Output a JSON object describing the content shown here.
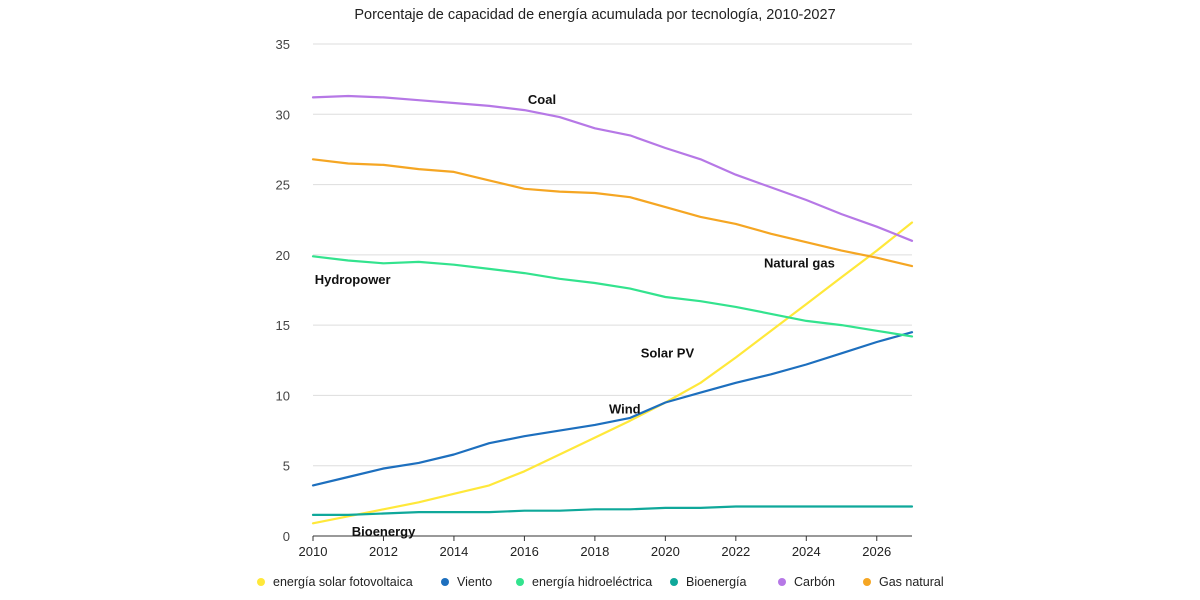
{
  "chart_data": {
    "type": "line",
    "title": "Porcentaje de capacidad de energía acumulada por tecnología, 2010-2027",
    "xlabel": "",
    "ylabel": "",
    "x": [
      2010,
      2011,
      2012,
      2013,
      2014,
      2015,
      2016,
      2017,
      2018,
      2019,
      2020,
      2021,
      2022,
      2023,
      2024,
      2025,
      2026,
      2027
    ],
    "xticks": [
      2010,
      2012,
      2014,
      2016,
      2018,
      2020,
      2022,
      2024,
      2026
    ],
    "yticks": [
      0,
      5,
      10,
      15,
      20,
      25,
      30,
      35
    ],
    "ylim": [
      0,
      35
    ],
    "grid": "horizontal",
    "legend_position": "bottom",
    "series": [
      {
        "name": "energía solar fotovoltaica",
        "color": "#FFE83A",
        "values": [
          0.9,
          1.4,
          1.9,
          2.4,
          3.0,
          3.6,
          4.6,
          5.8,
          7.0,
          8.2,
          9.5,
          10.9,
          12.7,
          14.6,
          16.5,
          18.4,
          20.3,
          22.3
        ]
      },
      {
        "name": "Viento",
        "color": "#1D6FBE",
        "values": [
          3.6,
          4.2,
          4.8,
          5.2,
          5.8,
          6.6,
          7.1,
          7.5,
          7.9,
          8.4,
          9.5,
          10.2,
          10.9,
          11.5,
          12.2,
          13.0,
          13.8,
          14.5
        ]
      },
      {
        "name": "energía hidroeléctrica",
        "color": "#33E38E",
        "values": [
          19.9,
          19.6,
          19.4,
          19.5,
          19.3,
          19.0,
          18.7,
          18.3,
          18.0,
          17.6,
          17.0,
          16.7,
          16.3,
          15.8,
          15.3,
          15.0,
          14.6,
          14.2
        ]
      },
      {
        "name": "Bioenergía",
        "color": "#0FA89A",
        "values": [
          1.5,
          1.5,
          1.6,
          1.7,
          1.7,
          1.7,
          1.8,
          1.8,
          1.9,
          1.9,
          2.0,
          2.0,
          2.1,
          2.1,
          2.1,
          2.1,
          2.1,
          2.1
        ]
      },
      {
        "name": "Carbón",
        "color": "#B678E6",
        "values": [
          31.2,
          31.3,
          31.2,
          31.0,
          30.8,
          30.6,
          30.3,
          29.8,
          29.0,
          28.5,
          27.6,
          26.8,
          25.7,
          24.8,
          23.9,
          22.9,
          22.0,
          21.0
        ]
      },
      {
        "name": "Gas natural",
        "color": "#F5A623",
        "values": [
          26.8,
          26.5,
          26.4,
          26.1,
          25.9,
          25.3,
          24.7,
          24.5,
          24.4,
          24.1,
          23.4,
          22.7,
          22.2,
          21.5,
          20.9,
          20.3,
          19.8,
          19.2
        ]
      }
    ],
    "annotations": [
      {
        "text": "Coal",
        "x": 2016.1,
        "y": 31.0
      },
      {
        "text": "Natural gas",
        "x": 2022.8,
        "y": 19.4
      },
      {
        "text": "Hydropower",
        "x": 2010.05,
        "y": 18.2
      },
      {
        "text": "Solar PV",
        "x": 2019.3,
        "y": 13.0
      },
      {
        "text": "Wind",
        "x": 2018.4,
        "y": 9.0
      },
      {
        "text": "Bioenergy",
        "x": 2011.1,
        "y": 0.3
      }
    ]
  }
}
